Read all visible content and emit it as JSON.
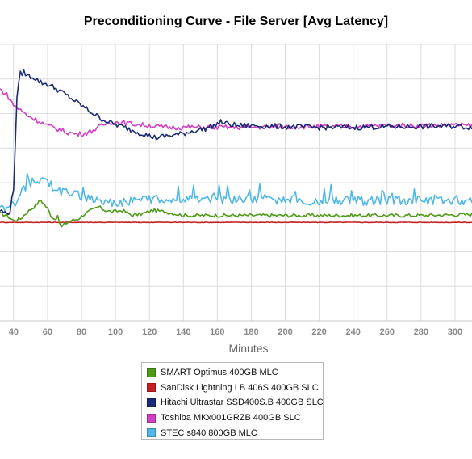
{
  "chart_data": {
    "type": "line",
    "title": "Preconditioning Curve - File Server [Avg Latency]",
    "xlabel": "Minutes",
    "ylabel": "",
    "xlim": [
      32,
      310
    ],
    "ylim": [
      0,
      8
    ],
    "x_ticks": [
      40,
      60,
      80,
      100,
      120,
      140,
      160,
      180,
      200,
      220,
      240,
      260,
      280,
      300
    ],
    "grid": true,
    "legend_position": "bottom",
    "series": [
      {
        "name": "SMART Optimus 400GB MLC",
        "color": "#4e9a16",
        "points": [
          [
            32,
            3.1
          ],
          [
            36,
            3.05
          ],
          [
            40,
            2.9
          ],
          [
            44,
            2.95
          ],
          [
            48,
            3.15
          ],
          [
            52,
            3.3
          ],
          [
            56,
            3.5
          ],
          [
            60,
            3.25
          ],
          [
            62,
            3.05
          ],
          [
            64,
            2.95
          ],
          [
            66,
            3.0
          ],
          [
            68,
            2.7
          ],
          [
            70,
            2.8
          ],
          [
            74,
            2.9
          ],
          [
            78,
            2.95
          ],
          [
            82,
            3.1
          ],
          [
            86,
            3.2
          ],
          [
            90,
            3.3
          ],
          [
            94,
            3.2
          ],
          [
            98,
            3.15
          ],
          [
            104,
            3.2
          ],
          [
            110,
            3.05
          ],
          [
            116,
            3.1
          ],
          [
            122,
            3.2
          ],
          [
            130,
            3.15
          ],
          [
            140,
            3.05
          ],
          [
            150,
            3.05
          ],
          [
            160,
            3.05
          ],
          [
            170,
            3.05
          ],
          [
            180,
            3.05
          ],
          [
            200,
            3.05
          ],
          [
            220,
            3.05
          ],
          [
            240,
            3.05
          ],
          [
            260,
            3.05
          ],
          [
            280,
            3.05
          ],
          [
            300,
            3.07
          ],
          [
            310,
            3.08
          ]
        ]
      },
      {
        "name": "SanDisk Lightning LB 406S 400GB SLC",
        "color": "#c62020",
        "points": [
          [
            32,
            2.85
          ],
          [
            60,
            2.85
          ],
          [
            100,
            2.85
          ],
          [
            140,
            2.85
          ],
          [
            180,
            2.85
          ],
          [
            220,
            2.85
          ],
          [
            260,
            2.85
          ],
          [
            310,
            2.85
          ]
        ]
      },
      {
        "name": "Hitachi Ultrastar SSD400S.B 400GB SLC",
        "color": "#1b2a78",
        "points": [
          [
            32,
            3.2
          ],
          [
            36,
            3.1
          ],
          [
            38,
            3.2
          ],
          [
            40,
            3.8
          ],
          [
            42,
            6.5
          ],
          [
            44,
            7.15
          ],
          [
            46,
            7.2
          ],
          [
            48,
            7.1
          ],
          [
            52,
            7.05
          ],
          [
            56,
            6.9
          ],
          [
            60,
            6.85
          ],
          [
            66,
            6.7
          ],
          [
            72,
            6.5
          ],
          [
            78,
            6.3
          ],
          [
            84,
            6.1
          ],
          [
            90,
            5.9
          ],
          [
            96,
            5.75
          ],
          [
            102,
            5.65
          ],
          [
            108,
            5.55
          ],
          [
            114,
            5.45
          ],
          [
            120,
            5.35
          ],
          [
            124,
            5.3
          ],
          [
            130,
            5.35
          ],
          [
            138,
            5.4
          ],
          [
            146,
            5.5
          ],
          [
            152,
            5.55
          ],
          [
            158,
            5.65
          ],
          [
            162,
            5.75
          ],
          [
            166,
            5.7
          ],
          [
            172,
            5.65
          ],
          [
            180,
            5.65
          ],
          [
            200,
            5.62
          ],
          [
            220,
            5.6
          ],
          [
            240,
            5.6
          ],
          [
            260,
            5.62
          ],
          [
            280,
            5.62
          ],
          [
            300,
            5.64
          ],
          [
            310,
            5.6
          ]
        ]
      },
      {
        "name": "Toshiba MKx001GRZB 400GB SLC",
        "color": "#d23ec4",
        "points": [
          [
            32,
            6.7
          ],
          [
            36,
            6.55
          ],
          [
            38,
            6.4
          ],
          [
            40,
            6.25
          ],
          [
            44,
            6.1
          ],
          [
            48,
            5.95
          ],
          [
            52,
            5.85
          ],
          [
            56,
            5.75
          ],
          [
            60,
            5.65
          ],
          [
            66,
            5.55
          ],
          [
            72,
            5.45
          ],
          [
            78,
            5.4
          ],
          [
            84,
            5.45
          ],
          [
            90,
            5.6
          ],
          [
            96,
            5.75
          ],
          [
            102,
            5.75
          ],
          [
            110,
            5.7
          ],
          [
            120,
            5.65
          ],
          [
            130,
            5.6
          ],
          [
            140,
            5.6
          ],
          [
            150,
            5.6
          ],
          [
            160,
            5.6
          ],
          [
            180,
            5.6
          ],
          [
            200,
            5.62
          ],
          [
            220,
            5.62
          ],
          [
            240,
            5.62
          ],
          [
            260,
            5.65
          ],
          [
            280,
            5.65
          ],
          [
            300,
            5.67
          ],
          [
            310,
            5.65
          ]
        ]
      },
      {
        "name": "STEC s840 800GB MLC",
        "color": "#4fb8e8",
        "points": [
          [
            32,
            3.2
          ],
          [
            36,
            3.15
          ],
          [
            40,
            3.3
          ],
          [
            44,
            3.7
          ],
          [
            48,
            3.95
          ],
          [
            52,
            4.05
          ],
          [
            56,
            4.1
          ],
          [
            60,
            4.0
          ],
          [
            66,
            3.8
          ],
          [
            72,
            3.7
          ],
          [
            78,
            3.6
          ],
          [
            84,
            3.55
          ],
          [
            90,
            3.5
          ],
          [
            96,
            3.45
          ],
          [
            102,
            3.4
          ],
          [
            110,
            3.45
          ],
          [
            120,
            3.5
          ],
          [
            130,
            3.55
          ],
          [
            140,
            3.55
          ],
          [
            150,
            3.55
          ],
          [
            160,
            3.5
          ],
          [
            180,
            3.5
          ],
          [
            200,
            3.5
          ],
          [
            220,
            3.48
          ],
          [
            240,
            3.48
          ],
          [
            260,
            3.48
          ],
          [
            280,
            3.5
          ],
          [
            300,
            3.5
          ],
          [
            310,
            3.45
          ]
        ]
      }
    ]
  }
}
